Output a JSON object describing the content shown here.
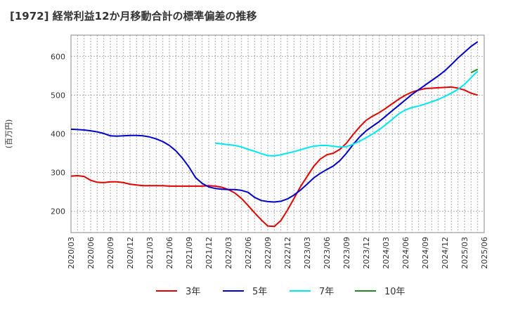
{
  "title": "[1972]  経常利益12か月移動合計の標準偏差の推移",
  "chart_data": {
    "type": "line",
    "title": "[1972]  経常利益12か月移動合計の標準偏差の推移",
    "ylabel": "(百万円)",
    "xlabel": "",
    "ylim": [
      145,
      655
    ],
    "yticks": [
      200,
      300,
      400,
      500,
      600
    ],
    "grid": true,
    "legend_position": "bottom",
    "x_ticks": [
      "2020/03",
      "2020/06",
      "2020/09",
      "2020/12",
      "2021/03",
      "2021/06",
      "2021/09",
      "2021/12",
      "2022/03",
      "2022/06",
      "2022/09",
      "2022/12",
      "2023/03",
      "2023/06",
      "2023/09",
      "2023/12",
      "2024/03",
      "2024/06",
      "2024/09",
      "2024/12",
      "2025/03",
      "2025/06"
    ],
    "series": [
      {
        "name": "3年",
        "color": "#e00000",
        "points": [
          [
            "2020/03",
            291
          ],
          [
            "2020/04",
            292
          ],
          [
            "2020/05",
            290
          ],
          [
            "2020/06",
            280
          ],
          [
            "2020/07",
            275
          ],
          [
            "2020/08",
            274
          ],
          [
            "2020/09",
            276
          ],
          [
            "2020/10",
            276
          ],
          [
            "2020/11",
            274
          ],
          [
            "2020/12",
            270
          ],
          [
            "2021/01",
            268
          ],
          [
            "2021/02",
            266
          ],
          [
            "2021/03",
            266
          ],
          [
            "2021/04",
            266
          ],
          [
            "2021/05",
            266
          ],
          [
            "2021/06",
            265
          ],
          [
            "2021/07",
            265
          ],
          [
            "2021/08",
            265
          ],
          [
            "2021/09",
            265
          ],
          [
            "2021/10",
            265
          ],
          [
            "2021/11",
            265
          ],
          [
            "2021/12",
            266
          ],
          [
            "2022/01",
            265
          ],
          [
            "2022/02",
            262
          ],
          [
            "2022/03",
            256
          ],
          [
            "2022/04",
            247
          ],
          [
            "2022/05",
            233
          ],
          [
            "2022/06",
            215
          ],
          [
            "2022/07",
            196
          ],
          [
            "2022/08",
            178
          ],
          [
            "2022/09",
            162
          ],
          [
            "2022/10",
            161
          ],
          [
            "2022/11",
            176
          ],
          [
            "2022/12",
            203
          ],
          [
            "2023/01",
            233
          ],
          [
            "2023/02",
            264
          ],
          [
            "2023/03",
            290
          ],
          [
            "2023/04",
            316
          ],
          [
            "2023/05",
            335
          ],
          [
            "2023/06",
            346
          ],
          [
            "2023/07",
            350
          ],
          [
            "2023/08",
            360
          ],
          [
            "2023/09",
            376
          ],
          [
            "2023/10",
            398
          ],
          [
            "2023/11",
            418
          ],
          [
            "2023/12",
            435
          ],
          [
            "2024/01",
            446
          ],
          [
            "2024/02",
            455
          ],
          [
            "2024/03",
            466
          ],
          [
            "2024/04",
            478
          ],
          [
            "2024/05",
            490
          ],
          [
            "2024/06",
            500
          ],
          [
            "2024/07",
            508
          ],
          [
            "2024/08",
            513
          ],
          [
            "2024/09",
            517
          ],
          [
            "2024/10",
            518
          ],
          [
            "2024/11",
            519
          ],
          [
            "2024/12",
            520
          ],
          [
            "2025/01",
            521
          ],
          [
            "2025/02",
            518
          ],
          [
            "2025/03",
            513
          ],
          [
            "2025/04",
            505
          ],
          [
            "2025/05",
            500
          ]
        ]
      },
      {
        "name": "5年",
        "color": "#0000c8",
        "points": [
          [
            "2020/03",
            412
          ],
          [
            "2020/04",
            411
          ],
          [
            "2020/05",
            410
          ],
          [
            "2020/06",
            408
          ],
          [
            "2020/07",
            405
          ],
          [
            "2020/08",
            401
          ],
          [
            "2020/09",
            395
          ],
          [
            "2020/10",
            394
          ],
          [
            "2020/11",
            395
          ],
          [
            "2020/12",
            396
          ],
          [
            "2021/01",
            396
          ],
          [
            "2021/02",
            395
          ],
          [
            "2021/03",
            392
          ],
          [
            "2021/04",
            387
          ],
          [
            "2021/05",
            380
          ],
          [
            "2021/06",
            370
          ],
          [
            "2021/07",
            356
          ],
          [
            "2021/08",
            337
          ],
          [
            "2021/09",
            314
          ],
          [
            "2021/10",
            287
          ],
          [
            "2021/11",
            272
          ],
          [
            "2021/12",
            263
          ],
          [
            "2022/01",
            259
          ],
          [
            "2022/02",
            257
          ],
          [
            "2022/03",
            256
          ],
          [
            "2022/04",
            256
          ],
          [
            "2022/05",
            254
          ],
          [
            "2022/06",
            249
          ],
          [
            "2022/07",
            236
          ],
          [
            "2022/08",
            228
          ],
          [
            "2022/09",
            225
          ],
          [
            "2022/10",
            224
          ],
          [
            "2022/11",
            226
          ],
          [
            "2022/12",
            232
          ],
          [
            "2023/01",
            242
          ],
          [
            "2023/02",
            255
          ],
          [
            "2023/03",
            270
          ],
          [
            "2023/04",
            286
          ],
          [
            "2023/05",
            298
          ],
          [
            "2023/06",
            308
          ],
          [
            "2023/07",
            317
          ],
          [
            "2023/08",
            331
          ],
          [
            "2023/09",
            350
          ],
          [
            "2023/10",
            372
          ],
          [
            "2023/11",
            392
          ],
          [
            "2023/12",
            408
          ],
          [
            "2024/01",
            420
          ],
          [
            "2024/02",
            432
          ],
          [
            "2024/03",
            446
          ],
          [
            "2024/04",
            460
          ],
          [
            "2024/05",
            474
          ],
          [
            "2024/06",
            488
          ],
          [
            "2024/07",
            502
          ],
          [
            "2024/08",
            514
          ],
          [
            "2024/09",
            526
          ],
          [
            "2024/10",
            538
          ],
          [
            "2024/11",
            550
          ],
          [
            "2024/12",
            563
          ],
          [
            "2025/01",
            579
          ],
          [
            "2025/02",
            596
          ],
          [
            "2025/03",
            611
          ],
          [
            "2025/04",
            626
          ],
          [
            "2025/05",
            638
          ]
        ]
      },
      {
        "name": "7年",
        "color": "#00e6f0",
        "points": [
          [
            "2022/01",
            376
          ],
          [
            "2022/02",
            374
          ],
          [
            "2022/03",
            372
          ],
          [
            "2022/04",
            370
          ],
          [
            "2022/05",
            366
          ],
          [
            "2022/06",
            360
          ],
          [
            "2022/07",
            355
          ],
          [
            "2022/08",
            349
          ],
          [
            "2022/09",
            344
          ],
          [
            "2022/10",
            343
          ],
          [
            "2022/11",
            346
          ],
          [
            "2022/12",
            350
          ],
          [
            "2023/01",
            354
          ],
          [
            "2023/02",
            359
          ],
          [
            "2023/03",
            364
          ],
          [
            "2023/04",
            368
          ],
          [
            "2023/05",
            370
          ],
          [
            "2023/06",
            370
          ],
          [
            "2023/07",
            368
          ],
          [
            "2023/08",
            366
          ],
          [
            "2023/09",
            367
          ],
          [
            "2023/10",
            373
          ],
          [
            "2023/11",
            381
          ],
          [
            "2023/12",
            390
          ],
          [
            "2024/01",
            400
          ],
          [
            "2024/02",
            411
          ],
          [
            "2024/03",
            424
          ],
          [
            "2024/04",
            438
          ],
          [
            "2024/05",
            452
          ],
          [
            "2024/06",
            462
          ],
          [
            "2024/07",
            468
          ],
          [
            "2024/08",
            472
          ],
          [
            "2024/09",
            477
          ],
          [
            "2024/10",
            483
          ],
          [
            "2024/11",
            489
          ],
          [
            "2024/12",
            497
          ],
          [
            "2025/01",
            505
          ],
          [
            "2025/02",
            515
          ],
          [
            "2025/03",
            528
          ],
          [
            "2025/04",
            545
          ],
          [
            "2025/05",
            562
          ]
        ]
      },
      {
        "name": "10年",
        "color": "#228b22",
        "points": [
          [
            "2025/04",
            558
          ],
          [
            "2025/05",
            567
          ]
        ]
      }
    ]
  }
}
